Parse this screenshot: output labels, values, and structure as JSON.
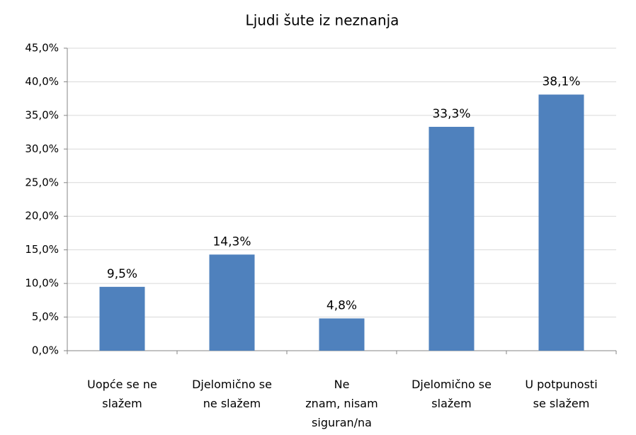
{
  "chart_data": {
    "type": "bar",
    "title": "Ljudi šute iz neznanja",
    "categories": [
      "Uopće se ne\nslažem",
      "Djelomično se\nne slažem",
      "Ne\nznam, nisam\nsiguran/na",
      "Djelomično se\nslažem",
      "U potpunosti\nse slažem"
    ],
    "values": [
      9.5,
      14.3,
      4.8,
      33.3,
      38.1
    ],
    "value_labels": [
      "9,5%",
      "14,3%",
      "4,8%",
      "33,3%",
      "38,1%"
    ],
    "color": "#4f81bd",
    "ylim": [
      0,
      45
    ],
    "yticks": [
      {
        "value": 0,
        "label": "0,0%"
      },
      {
        "value": 5,
        "label": "5,0%"
      },
      {
        "value": 10,
        "label": "10,0%"
      },
      {
        "value": 15,
        "label": "15,0%"
      },
      {
        "value": 20,
        "label": "20,0%"
      },
      {
        "value": 25,
        "label": "25,0%"
      },
      {
        "value": 30,
        "label": "30,0%"
      },
      {
        "value": 35,
        "label": "35,0%"
      },
      {
        "value": 40,
        "label": "40,0%"
      },
      {
        "value": 45,
        "label": "45,0%"
      }
    ],
    "grid": true
  }
}
